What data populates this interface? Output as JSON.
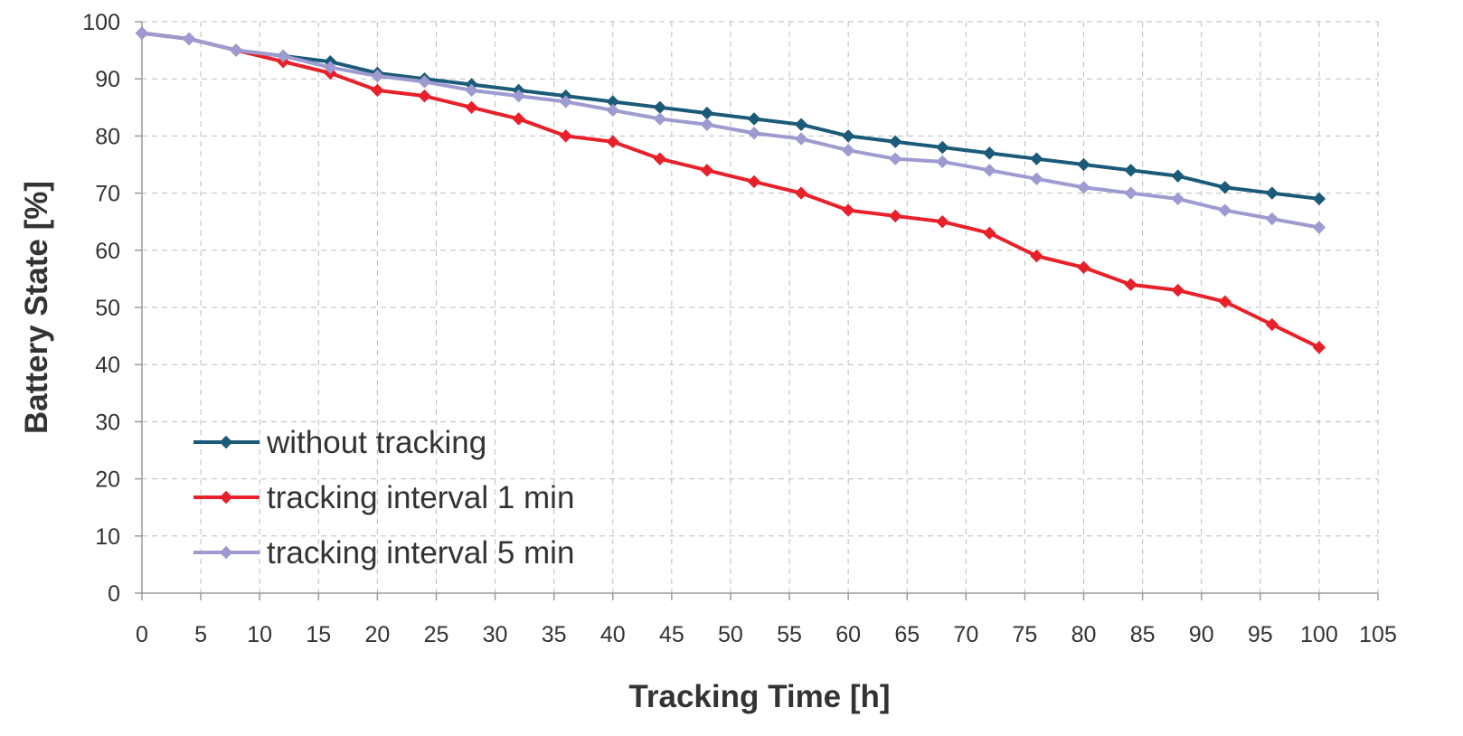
{
  "chart_data": {
    "type": "line",
    "title": "",
    "xlabel": "Tracking Time [h]",
    "ylabel": "Battery State [%]",
    "xlim": [
      0,
      105
    ],
    "ylim": [
      0,
      100
    ],
    "x_ticks": [
      "0",
      "5",
      "10",
      "15",
      "20",
      "25",
      "30",
      "35",
      "40",
      "45",
      "50",
      "55",
      "60",
      "65",
      "70",
      "75",
      "80",
      "85",
      "90",
      "95",
      "100",
      "105"
    ],
    "y_ticks": [
      "0",
      "10",
      "20",
      "30",
      "40",
      "50",
      "60",
      "70",
      "80",
      "90",
      "100"
    ],
    "grid": true,
    "legend_position": "bottom-left",
    "x": [
      0,
      4,
      8,
      12,
      16,
      20,
      24,
      28,
      32,
      36,
      40,
      44,
      48,
      52,
      56,
      60,
      64,
      68,
      72,
      76,
      80,
      84,
      88,
      92,
      96,
      100
    ],
    "series": [
      {
        "name": "without tracking",
        "color": "#1b5a78",
        "values": [
          98,
          97,
          95,
          94,
          93,
          91,
          90,
          89,
          88,
          87,
          86,
          85,
          84,
          83,
          82,
          80,
          79,
          78,
          77,
          76,
          75,
          74,
          73,
          71,
          70,
          69
        ]
      },
      {
        "name": "tracking interval 1 min",
        "color": "#e8202a",
        "values": [
          98,
          97,
          95,
          93,
          91,
          88,
          87,
          85,
          83,
          80,
          79,
          76,
          74,
          72,
          70,
          67,
          66,
          65,
          63,
          59,
          57,
          54,
          53,
          51,
          47,
          43
        ]
      },
      {
        "name": "tracking interval 5 min",
        "color": "#9d9bd0",
        "values": [
          98,
          97,
          95,
          94,
          92,
          90.5,
          89.5,
          88,
          87,
          86,
          84.5,
          83,
          82,
          80.5,
          79.5,
          77.5,
          76,
          75.5,
          74,
          72.5,
          71,
          70,
          69,
          67,
          65.5,
          64
        ]
      }
    ]
  }
}
